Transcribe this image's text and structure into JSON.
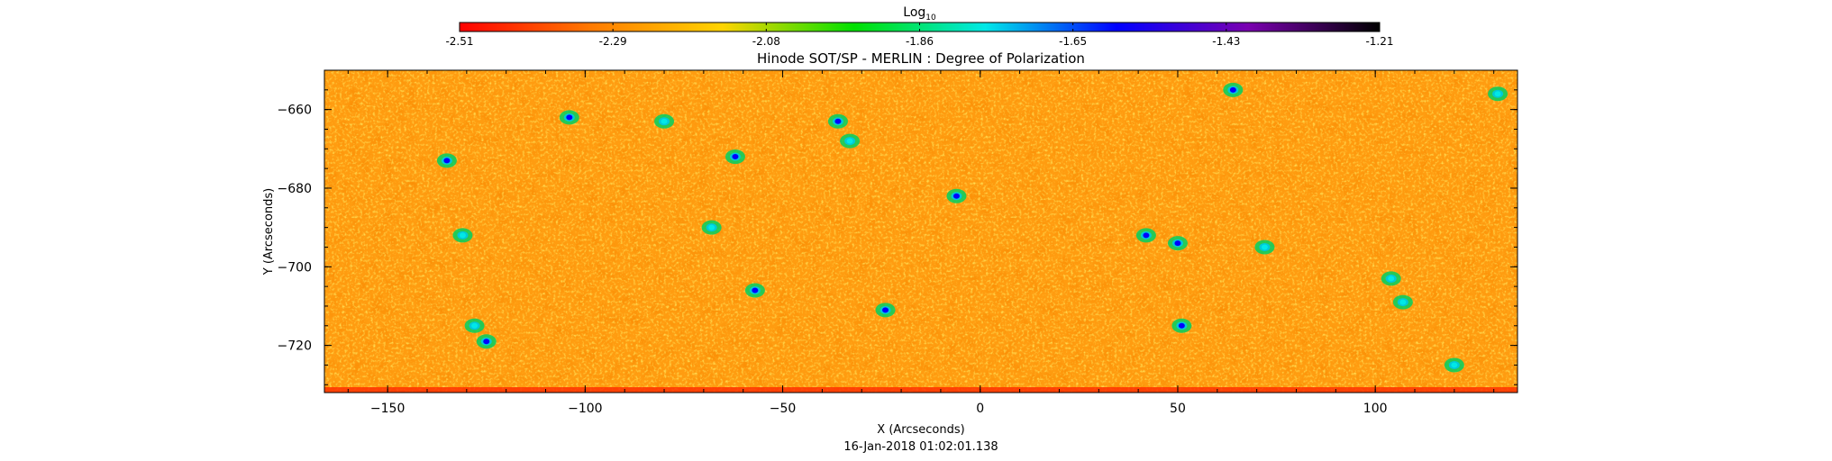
{
  "chart_data": {
    "type": "heatmap",
    "title": "Hinode SOT/SP - MERLIN : Degree of Polarization",
    "xlabel": "X (Arcseconds)",
    "ylabel": "Y (Arcseconds)",
    "xlim": [
      -166,
      136
    ],
    "ylim": [
      -732,
      -650
    ],
    "xticks": [
      -150,
      -100,
      -50,
      0,
      50,
      100
    ],
    "yticks": [
      -660,
      -680,
      -700,
      -720
    ],
    "colorbar": {
      "title_base": "Log",
      "title_sub": "10",
      "range": [
        -2.51,
        -1.21
      ],
      "ticks": [
        "-2.51",
        "-2.29",
        "-2.08",
        "-1.86",
        "-1.65",
        "-1.43",
        "-1.21"
      ],
      "colormap": [
        "#ff0000",
        "#ff7a00",
        "#ffd400",
        "#00e000",
        "#00e8e8",
        "#0000ff",
        "#7a00b0",
        "#000000"
      ]
    },
    "background_level": -2.35,
    "features": [
      {
        "x": -104,
        "y": -662,
        "value": -1.55
      },
      {
        "x": -135,
        "y": -673,
        "value": -1.5
      },
      {
        "x": -131,
        "y": -692,
        "value": -1.8
      },
      {
        "x": -128,
        "y": -715,
        "value": -1.75
      },
      {
        "x": -125,
        "y": -719,
        "value": -1.5
      },
      {
        "x": -80,
        "y": -663,
        "value": -1.7
      },
      {
        "x": -62,
        "y": -672,
        "value": -1.6
      },
      {
        "x": -68,
        "y": -690,
        "value": -1.85
      },
      {
        "x": -57,
        "y": -706,
        "value": -1.55
      },
      {
        "x": -36,
        "y": -663,
        "value": -1.65
      },
      {
        "x": -33,
        "y": -668,
        "value": -1.7
      },
      {
        "x": -24,
        "y": -711,
        "value": -1.6
      },
      {
        "x": -6,
        "y": -682,
        "value": -1.6
      },
      {
        "x": 42,
        "y": -692,
        "value": -1.55
      },
      {
        "x": 50,
        "y": -694,
        "value": -1.5
      },
      {
        "x": 51,
        "y": -715,
        "value": -1.6
      },
      {
        "x": 64,
        "y": -655,
        "value": -1.6
      },
      {
        "x": 72,
        "y": -695,
        "value": -1.8
      },
      {
        "x": 104,
        "y": -703,
        "value": -1.7
      },
      {
        "x": 107,
        "y": -709,
        "value": -1.75
      },
      {
        "x": 120,
        "y": -725,
        "value": -1.8
      },
      {
        "x": 131,
        "y": -656,
        "value": -1.7
      }
    ]
  },
  "footer": {
    "timestamp": "16-Jan-2018 01:02:01.138"
  }
}
